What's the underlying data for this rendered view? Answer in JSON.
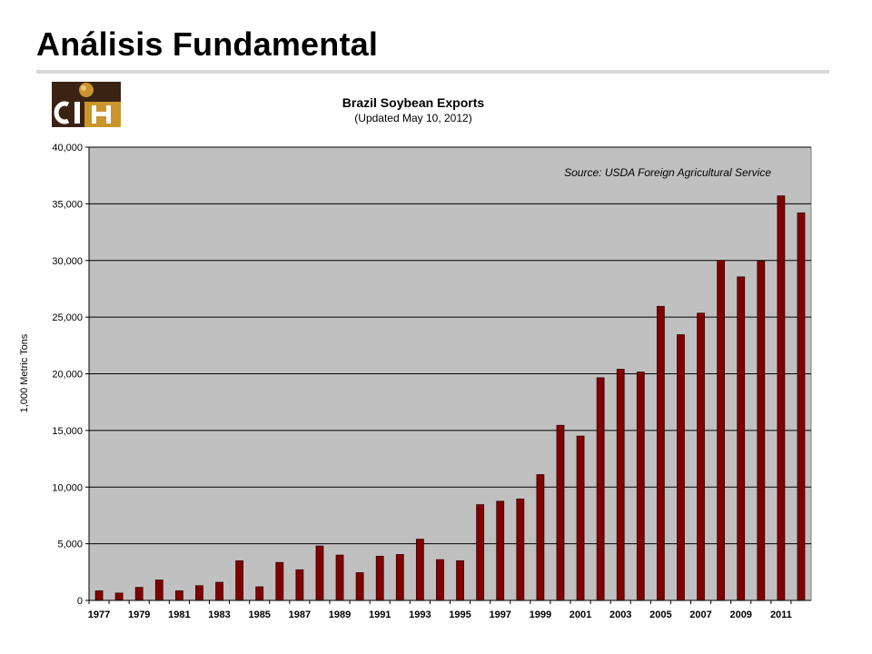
{
  "slide": {
    "title": "Análisis Fundamental"
  },
  "logo": {
    "text": "CIH",
    "colors": {
      "dark": "#3b2314",
      "gold": "#c9952c",
      "white": "#ffffff"
    }
  },
  "colors": {
    "bar": "#7f0000",
    "bar_stroke": "#3a0000",
    "plot_bg": "#c0c0c0",
    "grid": "#000000"
  },
  "chart_data": {
    "type": "bar",
    "title": "Brazil Soybean Exports",
    "subtitle": "(Updated May 10, 2012)",
    "annotation": "Source: USDA Foreign Agricultural Service",
    "ylabel": "1,000 Metric Tons",
    "xlabel": "",
    "ylim": [
      0,
      40000
    ],
    "yticks": [
      0,
      5000,
      10000,
      15000,
      20000,
      25000,
      30000,
      35000,
      40000
    ],
    "ytick_labels": [
      "0",
      "5,000",
      "10,000",
      "15,000",
      "20,000",
      "25,000",
      "30,000",
      "35,000",
      "40,000"
    ],
    "grid": true,
    "categories": [
      "1977",
      "1978",
      "1979",
      "1980",
      "1981",
      "1982",
      "1983",
      "1984",
      "1985",
      "1986",
      "1987",
      "1988",
      "1989",
      "1990",
      "1991",
      "1992",
      "1993",
      "1994",
      "1995",
      "1996",
      "1997",
      "1998",
      "1999",
      "2000",
      "2001",
      "2002",
      "2003",
      "2004",
      "2005",
      "2006",
      "2007",
      "2008",
      "2009",
      "2010",
      "2011",
      "2012"
    ],
    "xtick_labels": [
      "1977",
      "",
      "1979",
      "",
      "1981",
      "",
      "1983",
      "",
      "1985",
      "",
      "1987",
      "",
      "1989",
      "",
      "1991",
      "",
      "1993",
      "",
      "1995",
      "",
      "1997",
      "",
      "1999",
      "",
      "2001",
      "",
      "2003",
      "",
      "2005",
      "",
      "2007",
      "",
      "2009",
      "",
      "2011",
      ""
    ],
    "values": [
      850,
      650,
      1150,
      1800,
      850,
      1300,
      1600,
      3500,
      1200,
      3350,
      2700,
      4800,
      4000,
      2450,
      3900,
      4050,
      5400,
      3600,
      3500,
      8450,
      8750,
      8950,
      11100,
      15450,
      14500,
      19650,
      20400,
      20150,
      25950,
      23450,
      25350,
      30000,
      28550,
      29950,
      35700,
      34200
    ]
  }
}
